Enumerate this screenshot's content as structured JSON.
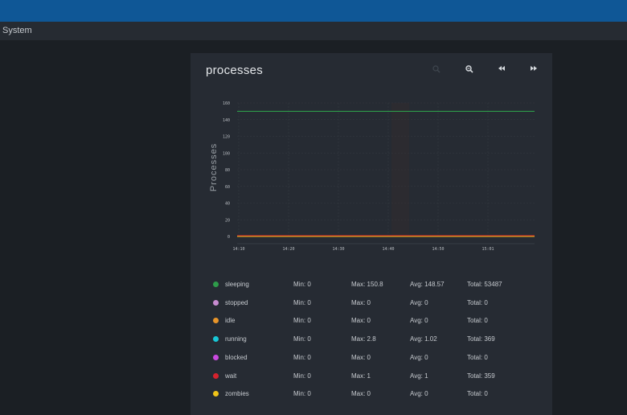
{
  "app": {
    "section_title": "System"
  },
  "panel": {
    "title": "processes",
    "toolbar": {
      "zoom_in_icon": "zoom-in-icon",
      "zoom_out_icon": "zoom-out-icon",
      "back_icon": "rewind-icon",
      "forward_icon": "fast-forward-icon"
    }
  },
  "chart_data": {
    "type": "line",
    "ylabel": "Processes",
    "xlabel": "",
    "title": "",
    "ylim": [
      0,
      160
    ],
    "yticks": [
      0,
      20,
      40,
      60,
      80,
      100,
      120,
      140,
      160
    ],
    "x_ticks": [
      "14:10",
      "14:20",
      "14:30",
      "14:40",
      "14:50",
      "15:01"
    ],
    "x_range": [
      "14:09",
      "15:10"
    ],
    "grid": true,
    "series": [
      {
        "name": "sleeping",
        "color": "#2e9c4a",
        "values": [
          150,
          150,
          150,
          150,
          150,
          150
        ]
      },
      {
        "name": "stopped",
        "color": "#c78bd0",
        "values": [
          0,
          0,
          0,
          0,
          0,
          0
        ]
      },
      {
        "name": "idle",
        "color": "#e8952a",
        "values": [
          0,
          0,
          0,
          0,
          0,
          0
        ]
      },
      {
        "name": "running",
        "color": "#18c7d6",
        "values": [
          1,
          1,
          1,
          1,
          1,
          1
        ]
      },
      {
        "name": "blocked",
        "color": "#c94ae0",
        "values": [
          0,
          0,
          0,
          0,
          0,
          0
        ]
      },
      {
        "name": "wait",
        "color": "#d6222d",
        "values": [
          1,
          1,
          1,
          1,
          1,
          1
        ]
      },
      {
        "name": "zombies",
        "color": "#f0c419",
        "values": [
          0,
          0,
          0,
          0,
          0,
          0
        ]
      }
    ]
  },
  "legend": [
    {
      "name": "sleeping",
      "color": "#2e9c4a",
      "min": "Min: 0",
      "max": "Max: 150.8",
      "avg": "Avg: 148.57",
      "total": "Total: 53487"
    },
    {
      "name": "stopped",
      "color": "#c78bd0",
      "min": "Min: 0",
      "max": "Max: 0",
      "avg": "Avg: 0",
      "total": "Total: 0"
    },
    {
      "name": "idle",
      "color": "#e8952a",
      "min": "Min: 0",
      "max": "Max: 0",
      "avg": "Avg: 0",
      "total": "Total: 0"
    },
    {
      "name": "running",
      "color": "#18c7d6",
      "min": "Min: 0",
      "max": "Max: 2.8",
      "avg": "Avg: 1.02",
      "total": "Total: 369"
    },
    {
      "name": "blocked",
      "color": "#c94ae0",
      "min": "Min: 0",
      "max": "Max: 0",
      "avg": "Avg: 0",
      "total": "Total: 0"
    },
    {
      "name": "wait",
      "color": "#d6222d",
      "min": "Min: 0",
      "max": "Max: 1",
      "avg": "Avg: 1",
      "total": "Total: 359"
    },
    {
      "name": "zombies",
      "color": "#f0c419",
      "min": "Min: 0",
      "max": "Max: 0",
      "avg": "Avg: 0",
      "total": "Total: 0"
    }
  ]
}
